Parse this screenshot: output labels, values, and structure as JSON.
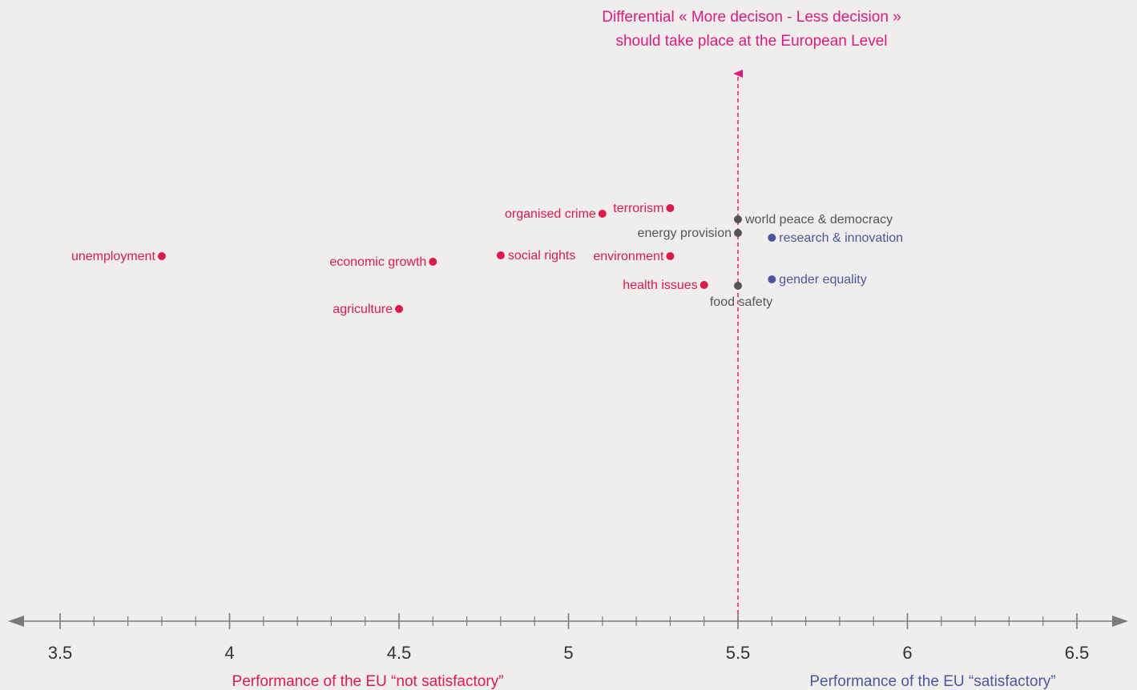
{
  "chart_data": {
    "type": "scatter",
    "title_lines": [
      "Differential « More decison - Less decision »",
      "should take place at the European Level"
    ],
    "xlabel_left": "Performance of the EU “not satisfactory”",
    "xlabel_right": "Performance of the EU “satisfactory”",
    "xlim": [
      3.45,
      6.65
    ],
    "major_ticks": [
      "3.5",
      "4",
      "4.5",
      "5",
      "5.5",
      "6",
      "6.5"
    ],
    "minor_tick_step": 0.1,
    "reference_x": 5.5,
    "grid": false,
    "colors": {
      "red": "#e0194d",
      "grey": "#555555",
      "blue": "#4a569d",
      "axis": "#7a7a7a",
      "arrow": "#e0197e"
    },
    "points": [
      {
        "label": "unemployment",
        "x": 3.8,
        "y": 0.0,
        "group": "red",
        "anchor": "left"
      },
      {
        "label": "agriculture",
        "x": 4.5,
        "y": -0.66,
        "group": "red",
        "anchor": "left"
      },
      {
        "label": "economic growth",
        "x": 4.6,
        "y": -0.07,
        "group": "red",
        "anchor": "left"
      },
      {
        "label": "social rights",
        "x": 4.8,
        "y": 0.01,
        "group": "red",
        "anchor": "right"
      },
      {
        "label": "organised crime",
        "x": 5.1,
        "y": 0.53,
        "group": "red",
        "anchor": "left"
      },
      {
        "label": "terrorism",
        "x": 5.3,
        "y": 0.6,
        "group": "red",
        "anchor": "left"
      },
      {
        "label": "environment",
        "x": 5.3,
        "y": 0.0,
        "group": "red",
        "anchor": "left"
      },
      {
        "label": "health issues",
        "x": 5.4,
        "y": -0.36,
        "group": "red",
        "anchor": "left"
      },
      {
        "label": "world peace & democracy",
        "x": 5.5,
        "y": 0.46,
        "group": "grey",
        "anchor": "right"
      },
      {
        "label": "energy provision",
        "x": 5.5,
        "y": 0.29,
        "group": "grey",
        "anchor": "left"
      },
      {
        "label": "food safety",
        "x": 5.5,
        "y": -0.37,
        "group": "grey",
        "anchor": "below"
      },
      {
        "label": "research & innovation",
        "x": 5.6,
        "y": 0.23,
        "group": "blue",
        "anchor": "right"
      },
      {
        "label": "gender equality",
        "x": 5.6,
        "y": -0.29,
        "group": "blue",
        "anchor": "right"
      }
    ]
  }
}
